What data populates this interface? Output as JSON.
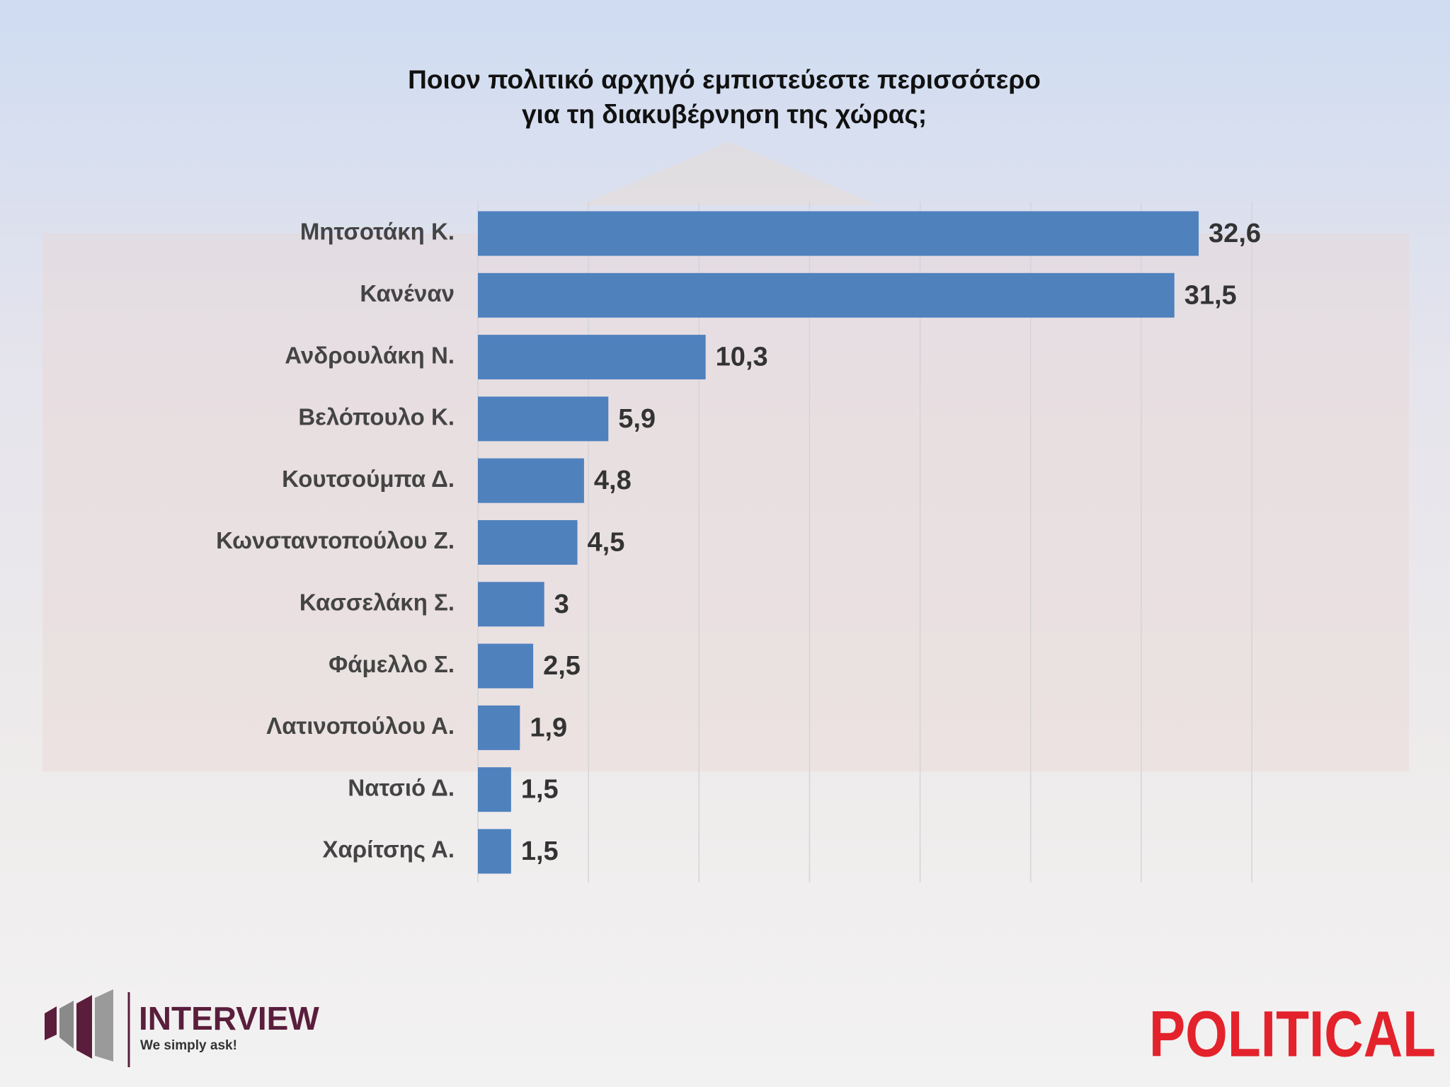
{
  "chart_data": {
    "type": "barh",
    "title": [
      "Ποιον πολιτικό αρχηγό εμπιστεύεστε περισσότερο",
      "για τη διακυβέρνηση της χώρας;"
    ],
    "categories": [
      "Μητσοτάκη Κ.",
      "Κανέναν",
      "Ανδρουλάκη Ν.",
      "Βελόπουλο Κ.",
      "Κουτσούμπα Δ.",
      "Κωνσταντοπούλου Ζ.",
      "Κασσελάκη Σ.",
      "Φάμελλο Σ.",
      "Λατινοπούλου Α.",
      "Νατσιό Δ.",
      "Χαρίτσης Α."
    ],
    "values": [
      32.6,
      31.5,
      10.3,
      5.9,
      4.8,
      4.5,
      3,
      2.5,
      1.9,
      1.5,
      1.5
    ],
    "value_labels": [
      "32,6",
      "31,5",
      "10,3",
      "5,9",
      "4,8",
      "4,5",
      "3",
      "2,5",
      "1,9",
      "1,5",
      "1,5"
    ],
    "color": "#4f81bd",
    "xlim": [
      0,
      35
    ],
    "xticks": [
      0,
      5,
      10,
      15,
      20,
      25,
      30,
      35
    ],
    "grid": true
  },
  "branding": {
    "left": {
      "name": "INTERVIEW",
      "tagline": "We simply ask!"
    },
    "right": "POLITICAL"
  }
}
